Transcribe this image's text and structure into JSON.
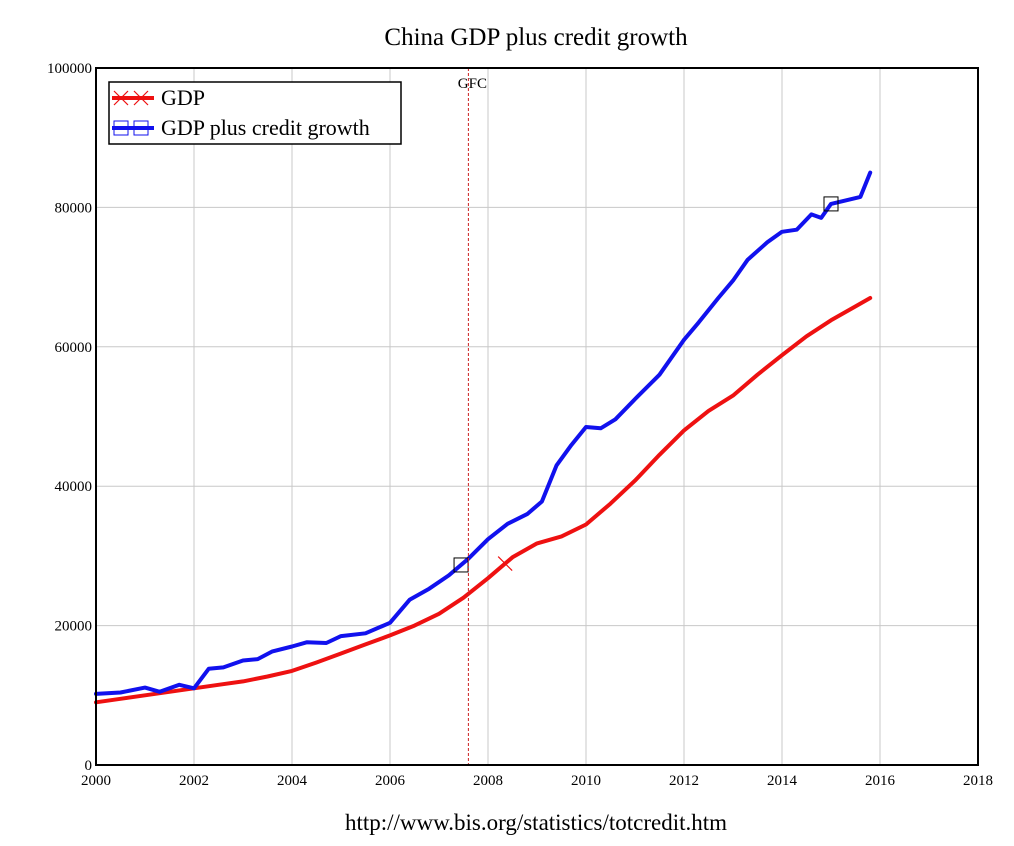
{
  "chart_data": {
    "type": "line",
    "title": "China GDP plus credit growth",
    "xlabel": "",
    "ylabel": "",
    "xlim": [
      2000,
      2018
    ],
    "ylim": [
      0,
      100000
    ],
    "x_ticks": [
      "2000",
      "2002",
      "2004",
      "2006",
      "2008",
      "2010",
      "2012",
      "2014",
      "2016",
      "2018"
    ],
    "y_ticks": [
      "0",
      "20000",
      "40000",
      "60000",
      "80000",
      "100000"
    ],
    "grid": true,
    "legend_position": "top-left",
    "annotations": [
      {
        "x": 2007.6,
        "text": "GFC"
      }
    ],
    "source": "http://www.bis.org/statistics/totcredit.htm",
    "series": [
      {
        "name": "GDP",
        "color": "#ee1111",
        "marker": "x",
        "marker_x": [
          2008.35
        ],
        "x": [
          2000.0,
          2000.5,
          2001.0,
          2001.5,
          2002.0,
          2002.5,
          2003.0,
          2003.5,
          2004.0,
          2004.5,
          2005.0,
          2005.5,
          2006.0,
          2006.5,
          2007.0,
          2007.5,
          2008.0,
          2008.5,
          2009.0,
          2009.5,
          2010.0,
          2010.5,
          2011.0,
          2011.5,
          2012.0,
          2012.5,
          2013.0,
          2013.5,
          2014.0,
          2014.5,
          2015.0,
          2015.5,
          2015.8
        ],
        "y": [
          9000,
          9500,
          10000,
          10500,
          11000,
          11500,
          12000,
          12700,
          13500,
          14700,
          16000,
          17300,
          18600,
          20000,
          21700,
          24000,
          26800,
          29800,
          31800,
          32800,
          34500,
          37500,
          40800,
          44500,
          48000,
          50800,
          53000,
          56000,
          58800,
          61500,
          63800,
          65800,
          67000
        ]
      },
      {
        "name": "GDP plus credit growth",
        "color": "#1111ee",
        "marker": "square",
        "marker_x": [
          2007.45,
          2015.0
        ],
        "x": [
          2000.0,
          2000.5,
          2001.0,
          2001.3,
          2001.7,
          2002.0,
          2002.3,
          2002.6,
          2003.0,
          2003.3,
          2003.6,
          2004.0,
          2004.3,
          2004.7,
          2005.0,
          2005.5,
          2006.0,
          2006.4,
          2006.8,
          2007.2,
          2007.6,
          2008.0,
          2008.4,
          2008.8,
          2009.1,
          2009.4,
          2009.7,
          2010.0,
          2010.3,
          2010.6,
          2011.0,
          2011.5,
          2012.0,
          2012.3,
          2012.7,
          2013.0,
          2013.3,
          2013.7,
          2014.0,
          2014.3,
          2014.6,
          2014.8,
          2015.0,
          2015.3,
          2015.6,
          2015.8
        ],
        "y": [
          10200,
          10400,
          11100,
          10500,
          11500,
          11000,
          13800,
          14000,
          15000,
          15200,
          16300,
          17000,
          17600,
          17500,
          18500,
          18900,
          20400,
          23700,
          25300,
          27200,
          29600,
          32400,
          34600,
          36000,
          37800,
          43000,
          45900,
          48500,
          48300,
          49600,
          52500,
          56000,
          61000,
          63500,
          67000,
          69500,
          72500,
          75000,
          76500,
          76800,
          79000,
          78500,
          80500,
          81000,
          81500,
          85000
        ]
      }
    ]
  }
}
